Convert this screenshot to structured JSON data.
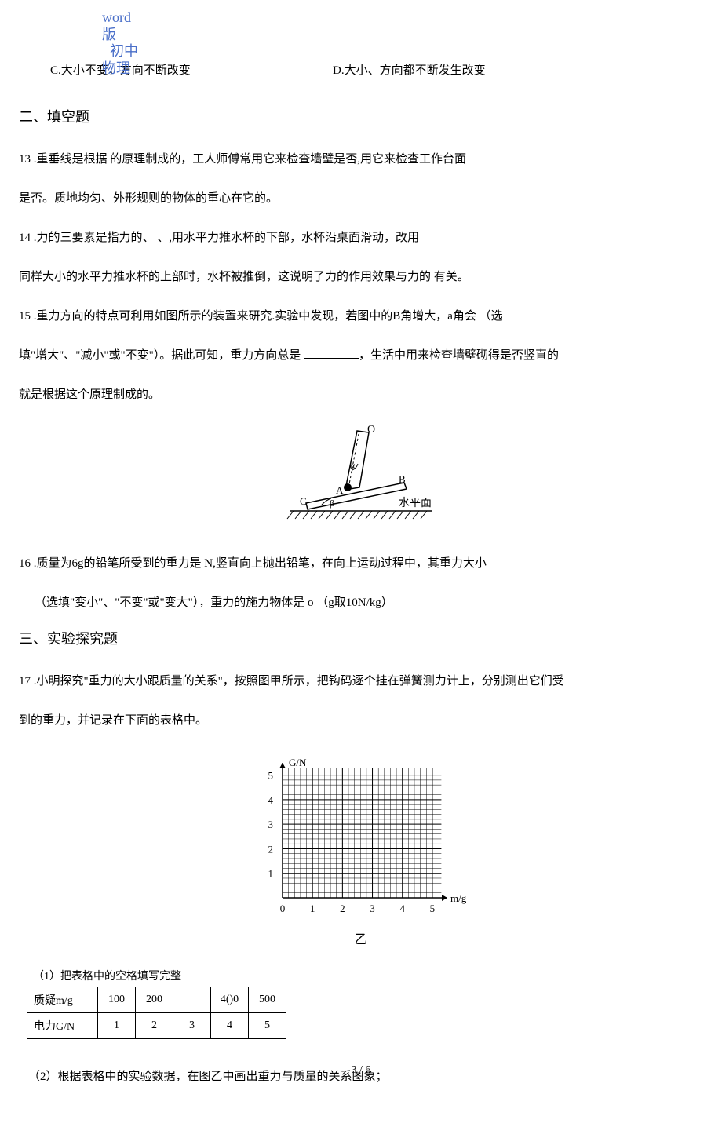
{
  "watermark": {
    "line1": "word",
    "line2": "版",
    "line3": "初中",
    "line4": "物理",
    "color": "#4a6fc9"
  },
  "options": {
    "c": "C.大小不变，方向不断改变",
    "d": "D.大小、方向都不断发生改变"
  },
  "section2_title": "二、填空题",
  "q13_line1": "13 .重垂线是根据 的原理制成的，工人师傅常用它来检查墙壁是否,用它来检查工作台面",
  "q13_line2": "是否。质地均匀、外形规则的物体的重心在它的。",
  "q14_line1": "14 .力的三要素是指力的、 、,用水平力推水杯的下部，水杯沿桌面滑动，改用",
  "q14_line2": "同样大小的水平力推水杯的上部时，水杯被推倒，这说明了力的作用效果与力的 有关。",
  "q15_line1": "15 .重力方向的特点可利用如图所示的装置来研究.实验中发现，若图中的B角增大，a角会 （选",
  "q15_line2_a": "填\"增大\"、\"减小\"或\"不变\"）。据此可知，重力方向总是 ",
  "q15_line2_b": "，生活中用来检查墙壁砌得是否竖直的",
  "q15_line3": "就是根据这个原理制成的。",
  "q16_line1": "16 .质量为6g的铅笔所受到的重力是 N,竖直向上抛出铅笔，在向上运动过程中，其重力大小",
  "q16_line2": "（选填\"变小\"、\"不变\"或\"变大\"），重力的施力物体是 o （g取10N/kg）",
  "section3_title": "三、实验探究题",
  "q17_line1": "17 .小明探究\"重力的大小跟质量的关系\"，按照图甲所示，把钩码逐个挂在弹簧测力计上，分别测出它们受",
  "q17_line2": "到的重力，并记录在下面的表格中。",
  "table_caption": "（1）把表格中的空格填写完整",
  "table": {
    "header_row": "质疑m/g",
    "header_row2": "电力G/N",
    "cols": [
      "100",
      "200",
      "",
      "4()0",
      "500"
    ],
    "row2": [
      "1",
      "2",
      "3",
      "4",
      "5"
    ]
  },
  "q2_text": "（2）根据表格中的实验数据，在图乙中画出重力与质量的关系图象；",
  "footer": "3 / 6",
  "figure1": {
    "labels": {
      "O": "O",
      "A": "A",
      "B": "B",
      "C": "C",
      "alpha": "α",
      "beta": "β",
      "ground": "水平面"
    },
    "stroke": "#000000"
  },
  "chart": {
    "type": "scatter-grid",
    "xlim": [
      0,
      5.5
    ],
    "ylim": [
      0,
      5.5
    ],
    "xtick_step": 1,
    "ytick_step": 1,
    "minor_grid": true,
    "minor_per_major": 5,
    "xlabel": "m/g",
    "ylabel": "G/N",
    "axis_color": "#000000",
    "grid_color": "#000000",
    "background_color": "#ffffff",
    "fontsize": 13,
    "caption": "乙",
    "xticks": [
      "0",
      "1",
      "2",
      "3",
      "4",
      "5"
    ],
    "yticks": [
      "1",
      "2",
      "3",
      "4",
      "5"
    ]
  }
}
